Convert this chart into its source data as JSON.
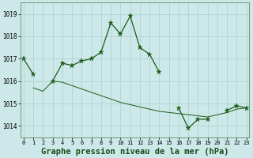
{
  "title": "Graphe pression niveau de la mer (hPa)",
  "background_color": "#cde8e8",
  "grid_color": "#aacfcf",
  "line_color": "#1a5c1a",
  "x_values": [
    0,
    1,
    2,
    3,
    4,
    5,
    6,
    7,
    8,
    9,
    10,
    11,
    12,
    13,
    14,
    15,
    16,
    17,
    18,
    19,
    20,
    21,
    22,
    23
  ],
  "series1": [
    1017.0,
    1016.3,
    null,
    1016.0,
    1016.8,
    1016.7,
    1016.9,
    1017.0,
    1017.3,
    1018.6,
    1018.1,
    1018.9,
    1017.5,
    1017.2,
    1016.4,
    null,
    1014.8,
    1013.9,
    1014.3,
    1014.3,
    null,
    1014.7,
    1014.9,
    1014.8
  ],
  "smooth_line": [
    null,
    1015.7,
    1015.55,
    1016.0,
    1015.95,
    1015.8,
    1015.65,
    1015.5,
    1015.35,
    1015.2,
    1015.05,
    1014.95,
    1014.85,
    1014.75,
    1014.65,
    1014.6,
    1014.55,
    1014.5,
    1014.45,
    1014.4,
    1014.5,
    1014.6,
    1014.75,
    1014.8
  ],
  "ylim": [
    1013.5,
    1019.5
  ],
  "xlim": [
    -0.3,
    23.3
  ],
  "yticks": [
    1014,
    1015,
    1016,
    1017,
    1018,
    1019
  ],
  "xticks": [
    0,
    1,
    2,
    3,
    4,
    5,
    6,
    7,
    8,
    9,
    10,
    11,
    12,
    13,
    14,
    15,
    16,
    17,
    18,
    19,
    20,
    21,
    22,
    23
  ],
  "title_fontsize": 7.5,
  "tick_fontsize": 5.5
}
